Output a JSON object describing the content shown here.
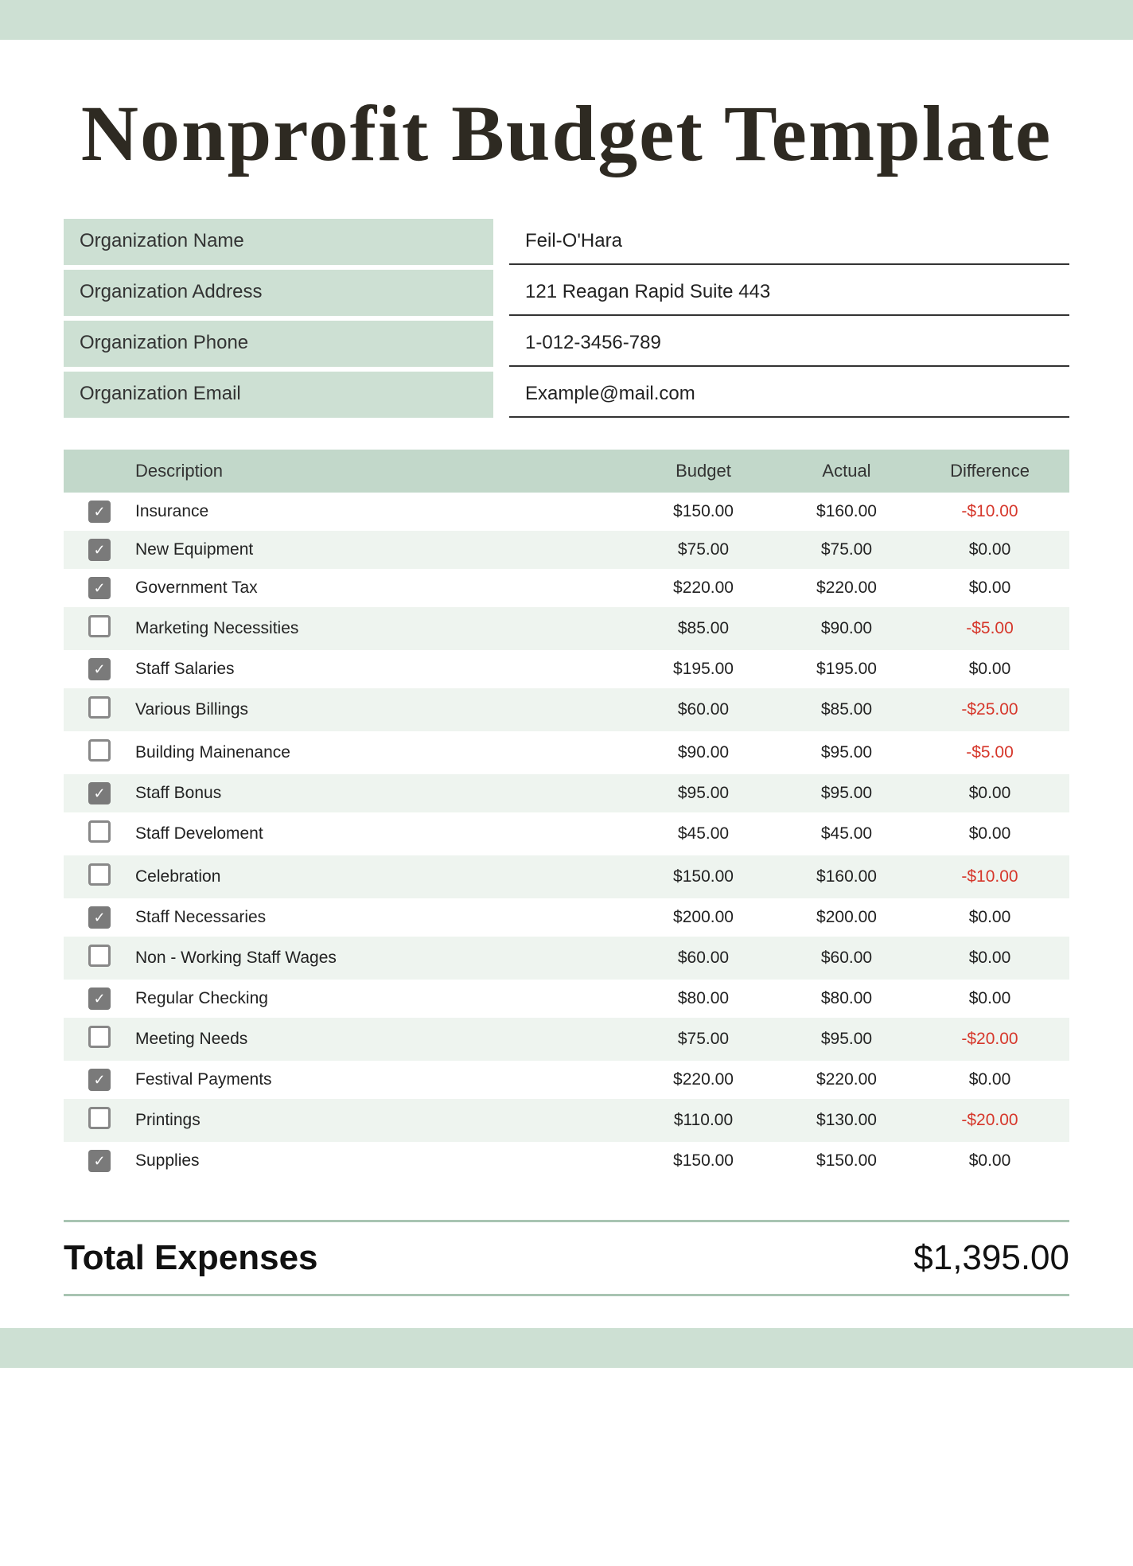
{
  "title": "Nonprofit Budget Template",
  "colors": {
    "mint": "#cde0d3",
    "mint_light": "#eef4ef",
    "header_mint": "#c2d8ca",
    "negative": "#d6372b",
    "border_mint": "#a8c4b2"
  },
  "org": {
    "labels": {
      "name": "Organization Name",
      "address": "Organization Address",
      "phone": "Organization Phone",
      "email": "Organization Email"
    },
    "values": {
      "name": "Feil-O'Hara",
      "address": "121 Reagan Rapid Suite 443",
      "phone": "1-012-3456-789",
      "email": "Example@mail.com"
    }
  },
  "table": {
    "headers": {
      "description": "Description",
      "budget": "Budget",
      "actual": "Actual",
      "difference": "Difference"
    },
    "rows": [
      {
        "checked": true,
        "desc": "Insurance",
        "budget": "$150.00",
        "actual": "$160.00",
        "diff": "-$10.00",
        "neg": true
      },
      {
        "checked": true,
        "desc": "New Equipment",
        "budget": "$75.00",
        "actual": "$75.00",
        "diff": "$0.00",
        "neg": false
      },
      {
        "checked": true,
        "desc": "Government Tax",
        "budget": "$220.00",
        "actual": "$220.00",
        "diff": "$0.00",
        "neg": false
      },
      {
        "checked": false,
        "desc": "Marketing Necessities",
        "budget": "$85.00",
        "actual": "$90.00",
        "diff": "-$5.00",
        "neg": true
      },
      {
        "checked": true,
        "desc": "Staff Salaries",
        "budget": "$195.00",
        "actual": "$195.00",
        "diff": "$0.00",
        "neg": false
      },
      {
        "checked": false,
        "desc": "Various Billings",
        "budget": "$60.00",
        "actual": "$85.00",
        "diff": "-$25.00",
        "neg": true
      },
      {
        "checked": false,
        "desc": "Building Mainenance",
        "budget": "$90.00",
        "actual": "$95.00",
        "diff": "-$5.00",
        "neg": true
      },
      {
        "checked": true,
        "desc": "Staff Bonus",
        "budget": "$95.00",
        "actual": "$95.00",
        "diff": "$0.00",
        "neg": false
      },
      {
        "checked": false,
        "desc": "Staff Develoment",
        "budget": "$45.00",
        "actual": "$45.00",
        "diff": "$0.00",
        "neg": false
      },
      {
        "checked": false,
        "desc": "Celebration",
        "budget": "$150.00",
        "actual": "$160.00",
        "diff": "-$10.00",
        "neg": true
      },
      {
        "checked": true,
        "desc": "Staff Necessaries",
        "budget": "$200.00",
        "actual": "$200.00",
        "diff": "$0.00",
        "neg": false
      },
      {
        "checked": false,
        "desc": "Non - Working Staff Wages",
        "budget": "$60.00",
        "actual": "$60.00",
        "diff": "$0.00",
        "neg": false
      },
      {
        "checked": true,
        "desc": "Regular Checking",
        "budget": "$80.00",
        "actual": "$80.00",
        "diff": "$0.00",
        "neg": false
      },
      {
        "checked": false,
        "desc": "Meeting Needs",
        "budget": "$75.00",
        "actual": "$95.00",
        "diff": "-$20.00",
        "neg": true
      },
      {
        "checked": true,
        "desc": "Festival Payments",
        "budget": "$220.00",
        "actual": "$220.00",
        "diff": "$0.00",
        "neg": false
      },
      {
        "checked": false,
        "desc": "Printings",
        "budget": "$110.00",
        "actual": "$130.00",
        "diff": "-$20.00",
        "neg": true
      },
      {
        "checked": true,
        "desc": "Supplies",
        "budget": "$150.00",
        "actual": "$150.00",
        "diff": "$0.00",
        "neg": false
      }
    ]
  },
  "totals": {
    "label": "Total Expenses",
    "value": "$1,395.00"
  }
}
